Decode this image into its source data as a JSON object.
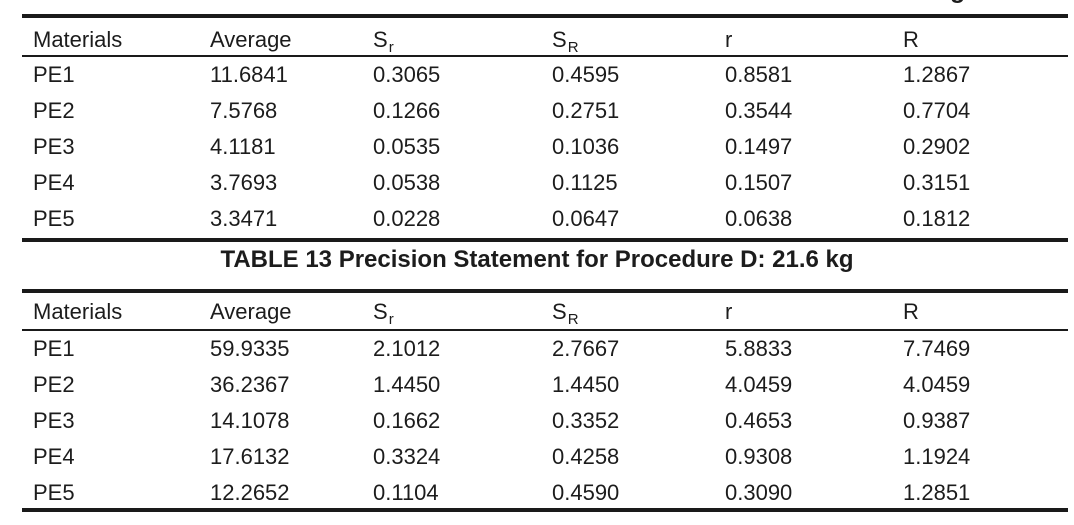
{
  "page": {
    "background": "#ffffff",
    "text_color": "#1c1c1c",
    "rule_color": "#1a1a1a",
    "clipped_title_fragment": "g"
  },
  "columns": [
    {
      "label": "Materials",
      "sub": ""
    },
    {
      "label": "Average",
      "sub": ""
    },
    {
      "label": "S",
      "sub": "r"
    },
    {
      "label": "S",
      "sub": "R"
    },
    {
      "label": "r",
      "sub": ""
    },
    {
      "label": "R",
      "sub": ""
    }
  ],
  "table_top": {
    "rows": [
      [
        "PE1",
        "11.6841",
        "0.3065",
        "0.4595",
        "0.8581",
        "1.2867"
      ],
      [
        "PE2",
        "7.5768",
        "0.1266",
        "0.2751",
        "0.3544",
        "0.7704"
      ],
      [
        "PE3",
        "4.1181",
        "0.0535",
        "0.1036",
        "0.1497",
        "0.2902"
      ],
      [
        "PE4",
        "3.7693",
        "0.0538",
        "0.1125",
        "0.1507",
        "0.3151"
      ],
      [
        "PE5",
        "3.3471",
        "0.0228",
        "0.0647",
        "0.0638",
        "0.1812"
      ]
    ]
  },
  "table_13": {
    "title": "TABLE 13 Precision Statement for Procedure D: 21.6 kg",
    "rows": [
      [
        "PE1",
        "59.9335",
        "2.1012",
        "2.7667",
        "5.8833",
        "7.7469"
      ],
      [
        "PE2",
        "36.2367",
        "1.4450",
        "1.4450",
        "4.0459",
        "4.0459"
      ],
      [
        "PE3",
        "14.1078",
        "0.1662",
        "0.3352",
        "0.4653",
        "0.9387"
      ],
      [
        "PE4",
        "17.6132",
        "0.3324",
        "0.4258",
        "0.9308",
        "1.1924"
      ],
      [
        "PE5",
        "12.2652",
        "0.1104",
        "0.4590",
        "0.3090",
        "1.2851"
      ]
    ]
  }
}
